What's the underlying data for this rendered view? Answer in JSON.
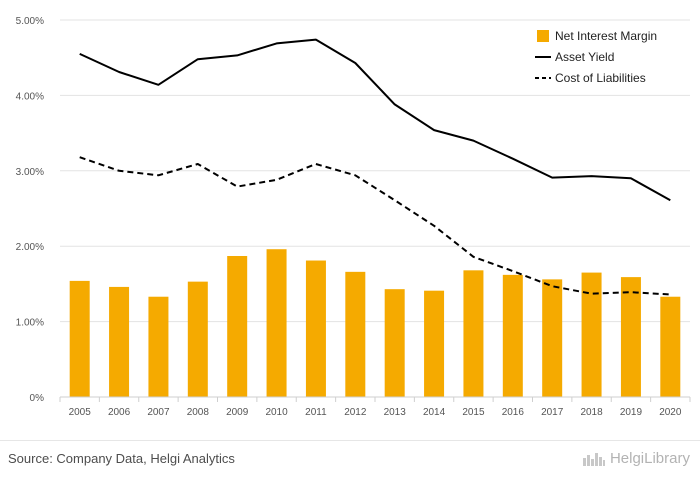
{
  "chart_data": {
    "type": "bar",
    "categories": [
      "2005",
      "2006",
      "2007",
      "2008",
      "2009",
      "2010",
      "2011",
      "2012",
      "2013",
      "2014",
      "2015",
      "2016",
      "2017",
      "2018",
      "2019",
      "2020"
    ],
    "y_ticks": [
      "0%",
      "1.00%",
      "2.00%",
      "3.00%",
      "4.00%",
      "5.00%"
    ],
    "ylim": [
      0,
      5.0
    ],
    "grid": true,
    "legend_position": "top-right",
    "series": [
      {
        "name": "Net Interest Margin",
        "type": "bar",
        "color": "#f5aa00",
        "values": [
          1.54,
          1.46,
          1.33,
          1.53,
          1.87,
          1.96,
          1.81,
          1.66,
          1.43,
          1.41,
          1.68,
          1.62,
          1.56,
          1.65,
          1.59,
          1.33
        ]
      },
      {
        "name": "Asset Yield",
        "type": "line",
        "style": "solid",
        "color": "#000000",
        "values": [
          4.55,
          4.31,
          4.14,
          4.48,
          4.53,
          4.69,
          4.74,
          4.43,
          3.88,
          3.54,
          3.4,
          3.16,
          2.91,
          2.93,
          2.9,
          2.61
        ]
      },
      {
        "name": "Cost of Liabilities",
        "type": "line",
        "style": "dashed",
        "color": "#000000",
        "values": [
          3.18,
          3.0,
          2.94,
          3.09,
          2.79,
          2.88,
          3.09,
          2.94,
          2.61,
          2.27,
          1.86,
          1.67,
          1.47,
          1.37,
          1.39,
          1.36
        ]
      }
    ]
  },
  "footer": {
    "source": "Source: Company Data, Helgi Analytics",
    "logo_text": "HelgiLibrary"
  }
}
